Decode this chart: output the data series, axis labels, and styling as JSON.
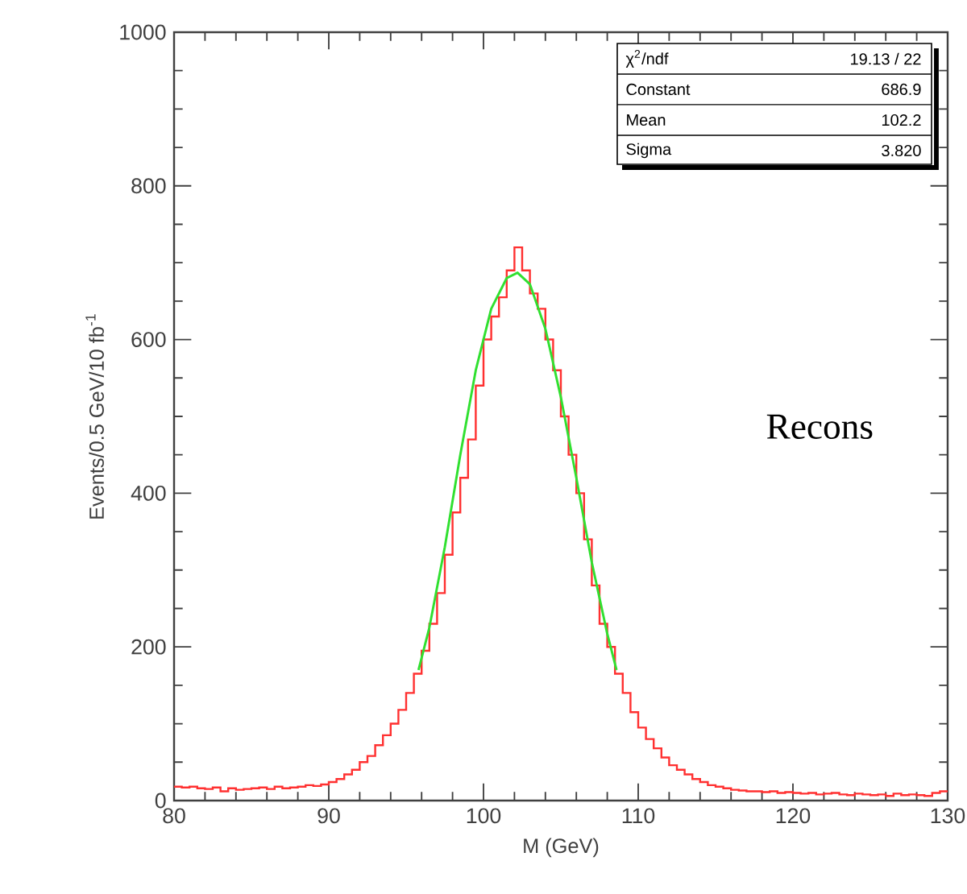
{
  "chart_data": {
    "type": "histogram",
    "xlabel": "M (GeV)",
    "ylabel": "Events/0.5 GeV/10 fb$^{-1}$",
    "bins": [
      80,
      80.5,
      81,
      81.5,
      82,
      82.5,
      83,
      83.5,
      84,
      84.5,
      85,
      85.5,
      86,
      86.5,
      87,
      87.5,
      88,
      88.5,
      89,
      89.5,
      90,
      90.5,
      91,
      91.5,
      92,
      92.5,
      93,
      93.5,
      94,
      94.5,
      95,
      95.5,
      96,
      96.5,
      97,
      97.5,
      98,
      98.5,
      99,
      99.5,
      100,
      100.5,
      101,
      101.5,
      102,
      102.5,
      103,
      103.5,
      104,
      104.5,
      105,
      105.5,
      106,
      106.5,
      107,
      107.5,
      108,
      108.5,
      109,
      109.5,
      110,
      110.5,
      111,
      111.5,
      112,
      112.5,
      113,
      113.5,
      114,
      114.5,
      115,
      115.5,
      116,
      116.5,
      117,
      117.5,
      118,
      118.5,
      119,
      119.5,
      120,
      120.5,
      121,
      121.5,
      122,
      122.5,
      123,
      123.5,
      124,
      124.5,
      125,
      125.5,
      126,
      126.5,
      127,
      127.5,
      128,
      128.5,
      129,
      129.5,
      130
    ],
    "series": [
      {
        "color": "#ff3030",
        "values": [
          18,
          17,
          18,
          16,
          15,
          17,
          12,
          16,
          14,
          15,
          16,
          17,
          15,
          18,
          16,
          17,
          18,
          20,
          19,
          21,
          24,
          28,
          34,
          40,
          50,
          58,
          72,
          85,
          100,
          118,
          140,
          165,
          195,
          230,
          270,
          320,
          375,
          420,
          470,
          540,
          600,
          630,
          655,
          690,
          720,
          690,
          660,
          640,
          600,
          560,
          500,
          450,
          400,
          340,
          280,
          230,
          200,
          165,
          140,
          115,
          95,
          80,
          68,
          56,
          46,
          40,
          34,
          28,
          24,
          20,
          18,
          16,
          14,
          13,
          12,
          12,
          11,
          12,
          10,
          11,
          10,
          9,
          10,
          8,
          9,
          10,
          8,
          7,
          9,
          8,
          7,
          8,
          6,
          9,
          7,
          8,
          7,
          6,
          10,
          12
        ]
      },
      {
        "type": "line",
        "color": "#30e030",
        "x": [
          95.8,
          96.5,
          97.5,
          98.5,
          99.5,
          100.5,
          101.5,
          102.2,
          103,
          104,
          105,
          106,
          107,
          108,
          108.6
        ],
        "values": [
          170,
          225,
          330,
          450,
          560,
          640,
          680,
          687,
          672,
          614,
          525,
          420,
          310,
          217,
          170
        ]
      }
    ],
    "xlim": [
      80,
      130
    ],
    "ylim": [
      0,
      1000
    ],
    "xticks": [
      80,
      90,
      100,
      110,
      120,
      130
    ],
    "yticks": [
      0,
      200,
      400,
      600,
      800,
      1000
    ],
    "annotations": [
      "χ$^{2}$/ndf",
      "19.13  /  22",
      "Constant",
      "686.9",
      "Mean",
      "102.2",
      "Sigma",
      "3.820",
      "Recons"
    ]
  }
}
